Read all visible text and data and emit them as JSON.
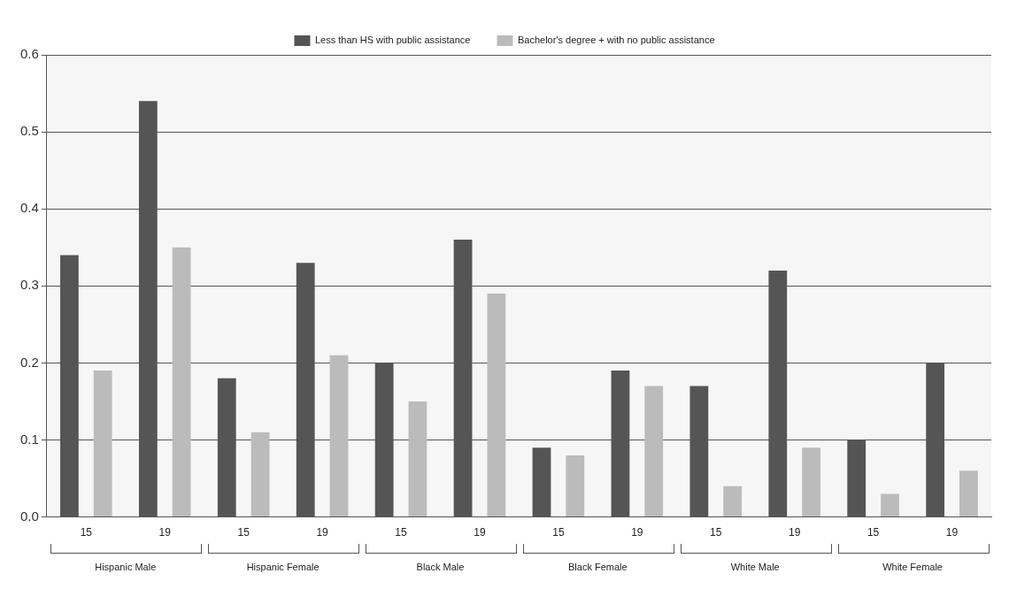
{
  "chart_data": {
    "type": "bar",
    "categories": [
      "15",
      "19",
      "15",
      "19",
      "15",
      "19",
      "15",
      "19",
      "15",
      "19",
      "15",
      "19"
    ],
    "series": [
      {
        "name": "Less than HS with public assistance",
        "color": "#555555",
        "values": [
          0.34,
          0.54,
          0.18,
          0.33,
          0.2,
          0.36,
          0.09,
          0.19,
          0.17,
          0.32,
          0.1,
          0.2
        ]
      },
      {
        "name": "Bachelor's degree + with no public assistance",
        "color": "#bbbbbb",
        "values": [
          0.19,
          0.35,
          0.11,
          0.21,
          0.15,
          0.29,
          0.08,
          0.17,
          0.04,
          0.09,
          0.03,
          0.06
        ]
      }
    ],
    "ylim": [
      0,
      0.6
    ],
    "yticks": [
      {
        "value": 0,
        "label": "0.0"
      },
      {
        "value": 0.1,
        "label": "0.1"
      },
      {
        "value": 0.2,
        "label": "0.2"
      },
      {
        "value": 0.3,
        "label": "0.3"
      },
      {
        "value": 0.4,
        "label": "0.4"
      },
      {
        "value": 0.5,
        "label": "0.5"
      },
      {
        "value": 0.6,
        "label": "0.6"
      }
    ],
    "annotations": [
      "Hispanic Male",
      "Hispanic Female",
      "Black Male",
      "Black Female",
      "White Male",
      "White Female"
    ],
    "grid": "y",
    "legend": "top"
  }
}
